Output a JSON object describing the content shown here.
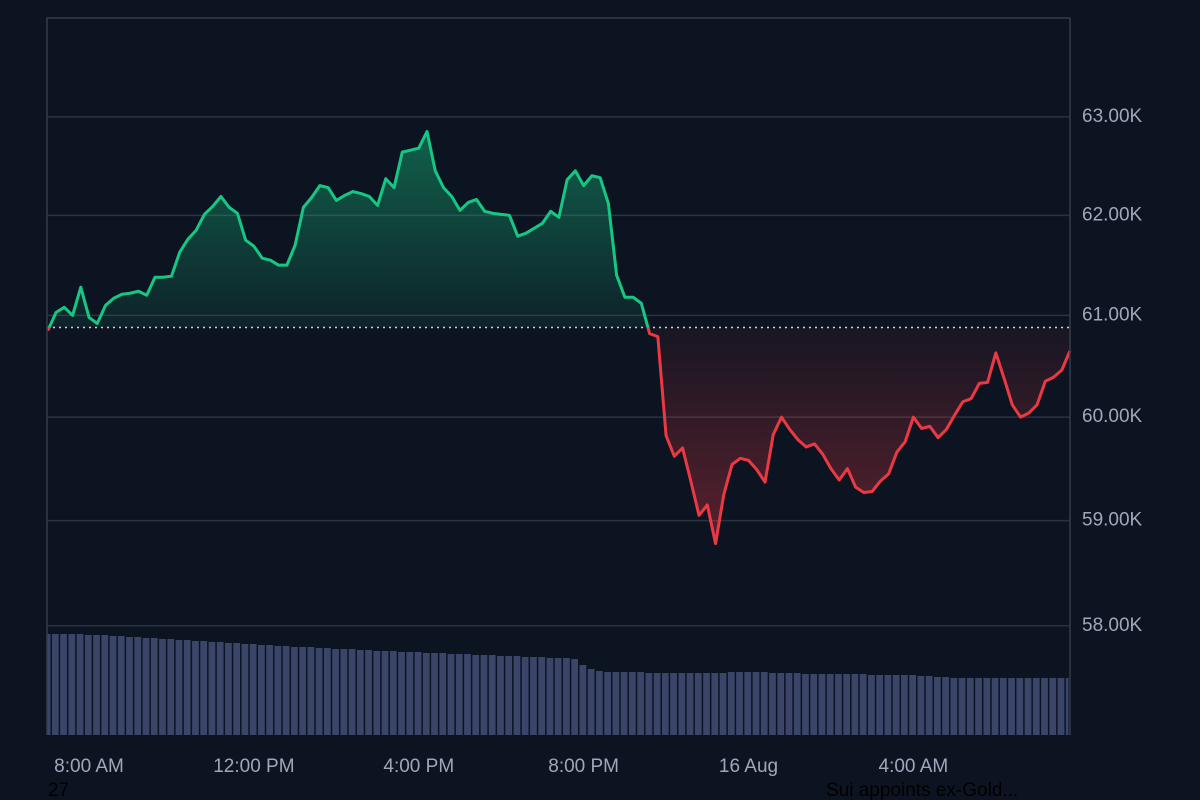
{
  "chart_data": {
    "type": "area",
    "x": [
      7.0,
      7.2,
      7.4,
      7.6,
      7.8,
      8.0,
      8.2,
      8.4,
      8.6,
      8.8,
      9.0,
      9.2,
      9.4,
      9.6,
      9.8,
      10.0,
      10.2,
      10.4,
      10.6,
      10.8,
      11.0,
      11.2,
      11.4,
      11.6,
      11.8,
      12.0,
      12.2,
      12.4,
      12.6,
      12.8,
      13.0,
      13.2,
      13.4,
      13.6,
      13.8,
      14.0,
      14.2,
      14.4,
      14.6,
      14.8,
      15.0,
      15.2,
      15.4,
      15.6,
      15.8,
      16.0,
      16.2,
      16.4,
      16.6,
      16.8,
      17.0,
      17.2,
      17.4,
      17.6,
      17.8,
      18.0,
      18.2,
      18.4,
      18.6,
      18.8,
      19.0,
      19.2,
      19.4,
      19.6,
      19.8,
      20.0,
      20.2,
      20.4,
      20.6,
      20.8,
      21.0,
      21.2,
      21.4,
      21.6,
      21.8,
      22.0,
      22.2,
      22.4,
      22.6,
      22.8,
      23.0,
      23.2,
      23.4,
      23.6,
      23.8,
      24.0,
      24.2,
      24.4,
      24.6,
      24.8,
      25.0,
      25.2,
      25.4,
      25.6,
      25.8,
      26.0,
      26.2,
      26.4,
      26.6,
      26.8,
      27.0,
      27.2,
      27.4,
      27.6,
      27.8,
      28.0,
      28.2,
      28.4,
      28.6,
      28.8,
      29.0,
      29.2,
      29.4,
      29.6,
      29.8,
      30.0,
      30.2,
      30.4,
      30.6,
      30.8,
      31.0,
      31.2,
      31.4,
      31.6,
      31.8
    ],
    "values": [
      60850,
      61030,
      61080,
      61000,
      61280,
      60980,
      60920,
      61100,
      61170,
      61210,
      61220,
      61240,
      61200,
      61380,
      61380,
      61390,
      61630,
      61760,
      61850,
      62010,
      62090,
      62190,
      62080,
      62020,
      61750,
      61690,
      61570,
      61550,
      61500,
      61500,
      61700,
      62080,
      62180,
      62300,
      62280,
      62150,
      62200,
      62240,
      62220,
      62190,
      62100,
      62370,
      62280,
      62640,
      62660,
      62680,
      62850,
      62450,
      62280,
      62190,
      62050,
      62130,
      62160,
      62040,
      62020,
      62010,
      62000,
      61790,
      61820,
      61870,
      61920,
      62040,
      61980,
      62360,
      62450,
      62300,
      62400,
      62380,
      62120,
      61400,
      61180,
      61180,
      61120,
      60820,
      60790,
      59820,
      59620,
      59700,
      59380,
      59050,
      59150,
      58780,
      59250,
      59540,
      59600,
      59580,
      59490,
      59370,
      59830,
      60000,
      59880,
      59780,
      59710,
      59740,
      59640,
      59500,
      59390,
      59500,
      59320,
      59270,
      59280,
      59380,
      59450,
      59660,
      59760,
      60000,
      59890,
      59910,
      59800,
      59880,
      60020,
      60150,
      60180,
      60330,
      60340,
      60630,
      60380,
      60120,
      60000,
      60040,
      60120,
      60350,
      60390,
      60460,
      60650
    ],
    "volume": [
      101,
      101,
      101,
      101,
      101,
      100,
      100,
      100,
      99,
      99,
      98,
      98,
      97,
      97,
      96,
      96,
      95,
      95,
      94,
      94,
      93,
      93,
      92,
      92,
      91,
      91,
      90,
      90,
      89,
      89,
      88,
      88,
      88,
      87,
      87,
      86,
      86,
      86,
      85,
      85,
      84,
      84,
      84,
      83,
      83,
      83,
      82,
      82,
      82,
      81,
      81,
      81,
      80,
      80,
      80,
      79,
      79,
      79,
      78,
      78,
      78,
      77,
      77,
      77,
      76,
      70,
      66,
      64,
      63,
      63,
      63,
      63,
      63,
      62,
      62,
      62,
      62,
      62,
      62,
      62,
      62,
      62,
      62,
      63,
      63,
      63,
      63,
      63,
      62,
      62,
      62,
      62,
      61,
      61,
      61,
      61,
      61,
      61,
      61,
      61,
      60,
      60,
      60,
      60,
      60,
      60,
      59,
      59,
      58,
      58,
      57,
      57,
      57,
      57,
      57,
      57,
      57,
      57,
      57,
      57,
      57,
      57,
      57,
      57,
      57
    ],
    "baseline": 60880,
    "color_up": "#16c784",
    "color_down": "#ea3943",
    "volume_color": "#3b4569",
    "log_scale": true,
    "grid": true,
    "xlim": [
      6.98,
      31.8
    ],
    "xticks": [
      {
        "value": 8,
        "label": "8:00 AM"
      },
      {
        "value": 12,
        "label": "12:00 PM"
      },
      {
        "value": 16,
        "label": "4:00 PM"
      },
      {
        "value": 20,
        "label": "8:00 PM"
      },
      {
        "value": 24,
        "label": "16 Aug"
      },
      {
        "value": 28,
        "label": "4:00 AM"
      }
    ],
    "ylim": [
      56980,
      64020
    ],
    "yticks": [
      {
        "value": 58000,
        "label": "58.00K"
      },
      {
        "value": 59000,
        "label": "59.00K"
      },
      {
        "value": 60000,
        "label": "60.00K"
      },
      {
        "value": 61000,
        "label": "61.00K"
      },
      {
        "value": 62000,
        "label": "62.00K"
      },
      {
        "value": 63000,
        "label": "63.00K"
      }
    ]
  },
  "footer": {
    "left": "27",
    "right": "Sui appoints ex-Gold..."
  }
}
